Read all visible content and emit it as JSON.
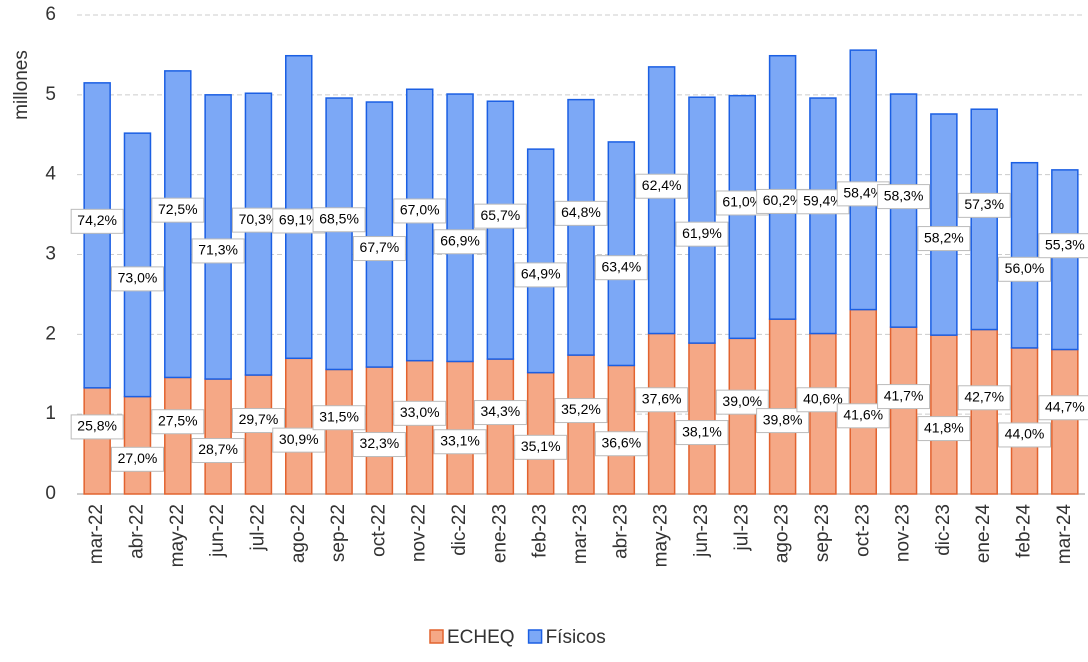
{
  "chart_data": {
    "type": "stacked-bar",
    "y_label": "millones",
    "categories": [
      "mar-22",
      "abr-22",
      "may-22",
      "jun-22",
      "jul-22",
      "ago-22",
      "sep-22",
      "oct-22",
      "nov-22",
      "dic-22",
      "ene-23",
      "feb-23",
      "mar-23",
      "abr-23",
      "may-23",
      "jun-23",
      "jul-23",
      "ago-23",
      "sep-23",
      "oct-23",
      "nov-23",
      "dic-23",
      "ene-24",
      "feb-24",
      "mar-24"
    ],
    "series": [
      {
        "name": "ECHEQ",
        "color": "#f5a886",
        "stroke": "#e2632f",
        "values": [
          1.33,
          1.22,
          1.46,
          1.44,
          1.49,
          1.7,
          1.56,
          1.59,
          1.67,
          1.66,
          1.69,
          1.52,
          1.74,
          1.61,
          2.01,
          1.89,
          1.95,
          2.19,
          2.01,
          2.31,
          2.09,
          1.99,
          2.06,
          1.83,
          1.81
        ],
        "data_labels": [
          "25,8%",
          "27,0%",
          "27,5%",
          "28,7%",
          "29,7%",
          "30,9%",
          "31,5%",
          "32,3%",
          "33,0%",
          "33,1%",
          "34,3%",
          "35,1%",
          "35,2%",
          "36,6%",
          "37,6%",
          "38,1%",
          "39,0%",
          "39,8%",
          "40,6%",
          "41,6%",
          "41,7%",
          "41,8%",
          "42,7%",
          "44,0%",
          "44,7%"
        ]
      },
      {
        "name": "Físicos",
        "color": "#7ca8f6",
        "stroke": "#1b5fe3",
        "values": [
          3.82,
          3.3,
          3.84,
          3.56,
          3.53,
          3.79,
          3.4,
          3.32,
          3.4,
          3.35,
          3.23,
          2.8,
          3.2,
          2.8,
          3.34,
          3.08,
          3.04,
          3.3,
          2.95,
          3.25,
          2.92,
          2.77,
          2.76,
          2.32,
          2.25
        ],
        "data_labels": [
          "74,2%",
          "73,0%",
          "72,5%",
          "71,3%",
          "70,3%",
          "69,1%",
          "68,5%",
          "67,7%",
          "67,0%",
          "66,9%",
          "65,7%",
          "64,9%",
          "64,8%",
          "63,4%",
          "62,4%",
          "61,9%",
          "61,0%",
          "60,2%",
          "59,4%",
          "58,4%",
          "58,3%",
          "58,2%",
          "57,3%",
          "56,0%",
          "55,3%"
        ]
      }
    ],
    "ylim": [
      0,
      6
    ],
    "yticks": [
      0,
      1,
      2,
      3,
      4,
      5,
      6
    ],
    "grid": true
  }
}
